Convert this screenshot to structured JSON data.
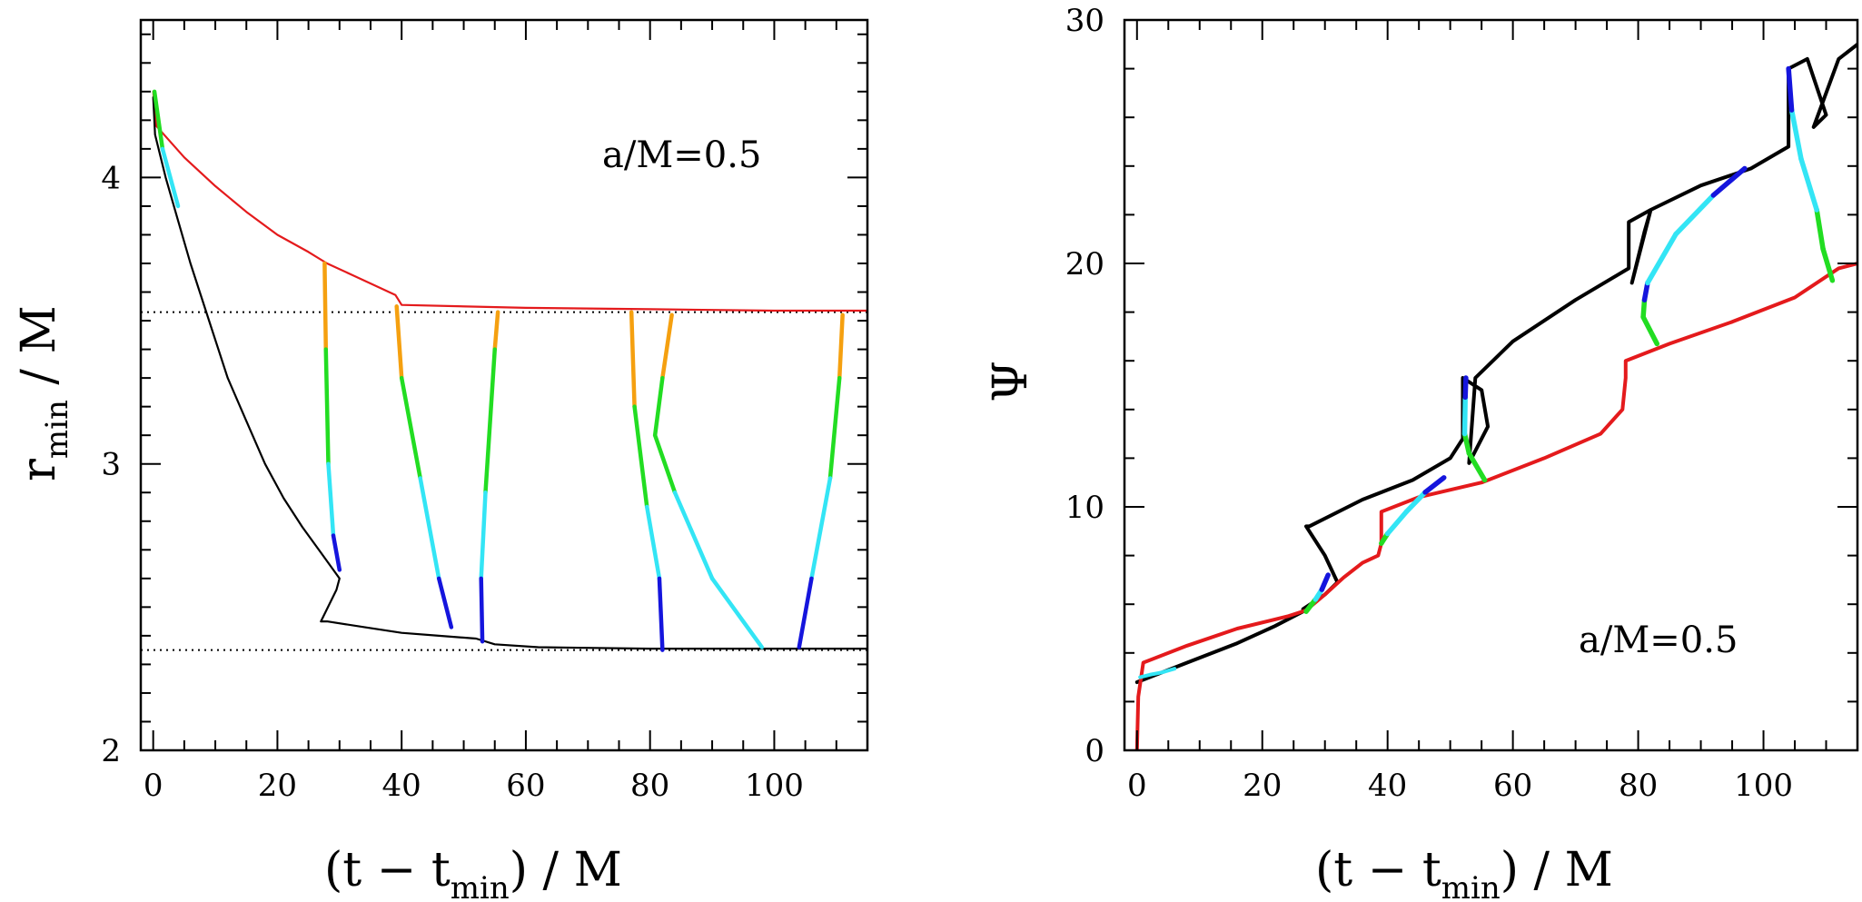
{
  "chart_data": [
    {
      "type": "line",
      "panel": "left",
      "xlabel": "(t − tmin) / M",
      "xlabel_main": "(t − t",
      "xlabel_sub": "min",
      "xlabel_tail": ") / M",
      "ylabel_main": "r",
      "ylabel_sub": "min",
      "ylabel_tail": " / M",
      "annotation": "a/M=0.5",
      "xlim": [
        -2,
        115
      ],
      "ylim": [
        2,
        4.55
      ],
      "xticks": [
        0,
        20,
        40,
        60,
        80,
        100
      ],
      "yticks": [
        2,
        3,
        4
      ],
      "xtick_labels": [
        "0",
        "20",
        "40",
        "60",
        "80",
        "100"
      ],
      "ytick_labels": [
        "2",
        "3",
        "4"
      ],
      "reference_lines": [
        3.53,
        2.35
      ],
      "series": [
        {
          "name": "outer",
          "color": "#e41a1c",
          "x": [
            0,
            0.5,
            5,
            10,
            15,
            20,
            25,
            28,
            32,
            36,
            39,
            40,
            60,
            80,
            100,
            115
          ],
          "y": [
            4.3,
            4.18,
            4.07,
            3.97,
            3.88,
            3.8,
            3.74,
            3.7,
            3.66,
            3.62,
            3.59,
            3.555,
            3.545,
            3.54,
            3.535,
            3.535
          ]
        },
        {
          "name": "inner",
          "color": "#000000",
          "x": [
            0,
            0.3,
            2,
            4,
            6,
            9,
            12,
            15,
            18,
            21,
            24,
            27,
            29,
            30,
            29.5,
            27,
            28,
            34,
            40,
            46,
            52,
            55,
            62,
            80,
            100,
            115
          ],
          "y": [
            4.28,
            4.15,
            4.0,
            3.85,
            3.7,
            3.5,
            3.3,
            3.15,
            3.0,
            2.88,
            2.78,
            2.69,
            2.63,
            2.6,
            2.56,
            2.45,
            2.45,
            2.43,
            2.41,
            2.4,
            2.39,
            2.37,
            2.36,
            2.355,
            2.355,
            2.355
          ]
        }
      ],
      "segments": [
        {
          "points": [
            [
              0.2,
              4.3
            ],
            [
              1.5,
              4.1
            ],
            [
              4,
              3.9
            ]
          ],
          "colors": [
            "#22dd22",
            "#33e5f5",
            "#1515dd"
          ]
        },
        {
          "points": [
            [
              27.6,
              3.7
            ],
            [
              27.8,
              3.4
            ],
            [
              28.2,
              3.0
            ],
            [
              29,
              2.75
            ],
            [
              30,
              2.63
            ]
          ],
          "colors": [
            "#f5a010",
            "#22dd22",
            "#33e5f5",
            "#1515dd"
          ]
        },
        {
          "points": [
            [
              39.2,
              3.55
            ],
            [
              40,
              3.3
            ],
            [
              43,
              2.95
            ],
            [
              46,
              2.6
            ],
            [
              48,
              2.43
            ]
          ],
          "colors": [
            "#f5a010",
            "#22dd22",
            "#33e5f5",
            "#1515dd"
          ]
        },
        {
          "points": [
            [
              55.5,
              3.53
            ],
            [
              55,
              3.4
            ],
            [
              53.5,
              2.9
            ],
            [
              52.8,
              2.6
            ],
            [
              53,
              2.38
            ]
          ],
          "colors": [
            "#f5a010",
            "#22dd22",
            "#33e5f5",
            "#1515dd"
          ]
        },
        {
          "points": [
            [
              77,
              3.53
            ],
            [
              77.5,
              3.2
            ],
            [
              79.5,
              2.85
            ],
            [
              81.5,
              2.6
            ],
            [
              82,
              2.35
            ]
          ],
          "colors": [
            "#f5a010",
            "#22dd22",
            "#33e5f5",
            "#1515dd"
          ]
        },
        {
          "points": [
            [
              83.5,
              3.52
            ],
            [
              82,
              3.3
            ],
            [
              80.8,
              3.1
            ],
            [
              84,
              2.9
            ],
            [
              90,
              2.6
            ],
            [
              98,
              2.36
            ]
          ],
          "colors": [
            "#f5a010",
            "#22dd22",
            "#22dd22",
            "#33e5f5",
            "#33e5f5",
            "#1515dd"
          ]
        },
        {
          "points": [
            [
              111,
              3.52
            ],
            [
              110.5,
              3.3
            ],
            [
              109,
              2.95
            ],
            [
              106,
              2.6
            ],
            [
              104,
              2.36
            ]
          ],
          "colors": [
            "#f5a010",
            "#22dd22",
            "#33e5f5",
            "#1515dd"
          ]
        }
      ]
    },
    {
      "type": "line",
      "panel": "right",
      "xlabel": "(t − tmin) / M",
      "xlabel_main": "(t − t",
      "xlabel_sub": "min",
      "xlabel_tail": ") / M",
      "ylabel": "Ψ",
      "annotation": "a/M=0.5",
      "xlim": [
        -2,
        115
      ],
      "ylim": [
        0,
        30
      ],
      "xticks": [
        0,
        20,
        40,
        60,
        80,
        100
      ],
      "yticks": [
        0,
        10,
        20,
        30
      ],
      "xtick_labels": [
        "0",
        "20",
        "40",
        "60",
        "80",
        "100"
      ],
      "ytick_labels": [
        "0",
        "10",
        "20",
        "30"
      ],
      "series": [
        {
          "name": "black",
          "color": "#000000",
          "x": [
            0,
            8,
            16,
            22,
            26.5,
            26.5,
            30,
            32,
            30,
            27,
            27.5,
            36,
            44,
            50,
            52,
            52,
            55,
            56,
            53,
            54,
            60,
            70,
            78.5,
            78.5,
            82,
            81,
            79,
            82,
            90,
            98,
            104,
            104,
            107,
            110,
            108,
            112,
            115
          ],
          "y": [
            2.8,
            3.6,
            4.4,
            5.1,
            5.7,
            5.8,
            6.4,
            6.9,
            8,
            9.2,
            9.2,
            10.3,
            11.1,
            12.0,
            12.8,
            15.3,
            14.8,
            13.3,
            11.8,
            15.3,
            16.8,
            18.5,
            19.8,
            21.7,
            22.2,
            21.3,
            19.2,
            22.2,
            23.2,
            23.9,
            24.8,
            28.0,
            28.4,
            26.1,
            25.6,
            28.4,
            29.0
          ]
        },
        {
          "name": "red",
          "color": "#e41a1c",
          "x": [
            0,
            0.2,
            1,
            8,
            16,
            24,
            27,
            30,
            33,
            36,
            38.5,
            39,
            39,
            45,
            55,
            65,
            74,
            77.5,
            78,
            78,
            85,
            95,
            105,
            112,
            115
          ],
          "y": [
            0,
            2.2,
            3.6,
            4.3,
            5.0,
            5.5,
            5.75,
            6.4,
            7.1,
            7.7,
            8.0,
            8.5,
            9.8,
            10.4,
            11.0,
            12.0,
            13.0,
            14.0,
            15.3,
            16.0,
            16.7,
            17.6,
            18.6,
            19.8,
            20.0
          ]
        },
        {
          "name": "transition-1",
          "color": "#33e5f5",
          "x": [
            0.5,
            2,
            4,
            6
          ],
          "y": [
            3.0,
            3.1,
            3.2,
            3.35
          ]
        }
      ],
      "segments": [
        {
          "points": [
            [
              27,
              5.7
            ],
            [
              28.5,
              6.2
            ],
            [
              29.5,
              6.6
            ],
            [
              30.5,
              7.2
            ]
          ],
          "colors": [
            "#22dd22",
            "#33e5f5",
            "#1515dd"
          ]
        },
        {
          "points": [
            [
              39,
              8.5
            ],
            [
              40,
              8.9
            ],
            [
              43,
              9.8
            ],
            [
              46,
              10.6
            ],
            [
              49,
              11.2
            ]
          ],
          "colors": [
            "#22dd22",
            "#33e5f5",
            "#33e5f5",
            "#1515dd"
          ]
        },
        {
          "points": [
            [
              55.5,
              11.1
            ],
            [
              53,
              12.2
            ],
            [
              52.3,
              13.0
            ],
            [
              52.4,
              14.5
            ],
            [
              52.5,
              15.3
            ]
          ],
          "colors": [
            "#22dd22",
            "#22dd22",
            "#33e5f5",
            "#1515dd"
          ]
        },
        {
          "points": [
            [
              83,
              16.7
            ],
            [
              80.8,
              17.8
            ],
            [
              81,
              18.5
            ],
            [
              81.5,
              19.2
            ],
            [
              86,
              21.2
            ],
            [
              92,
              22.8
            ],
            [
              97,
              23.9
            ]
          ],
          "colors": [
            "#22dd22",
            "#22dd22",
            "#1515dd",
            "#33e5f5",
            "#33e5f5",
            "#1515dd"
          ]
        },
        {
          "points": [
            [
              111,
              19.3
            ],
            [
              109.5,
              20.6
            ],
            [
              108.5,
              22.2
            ],
            [
              106,
              24.3
            ],
            [
              104.5,
              26.3
            ],
            [
              104,
              28
            ]
          ],
          "colors": [
            "#22dd22",
            "#22dd22",
            "#33e5f5",
            "#33e5f5",
            "#1515dd"
          ]
        }
      ]
    }
  ]
}
